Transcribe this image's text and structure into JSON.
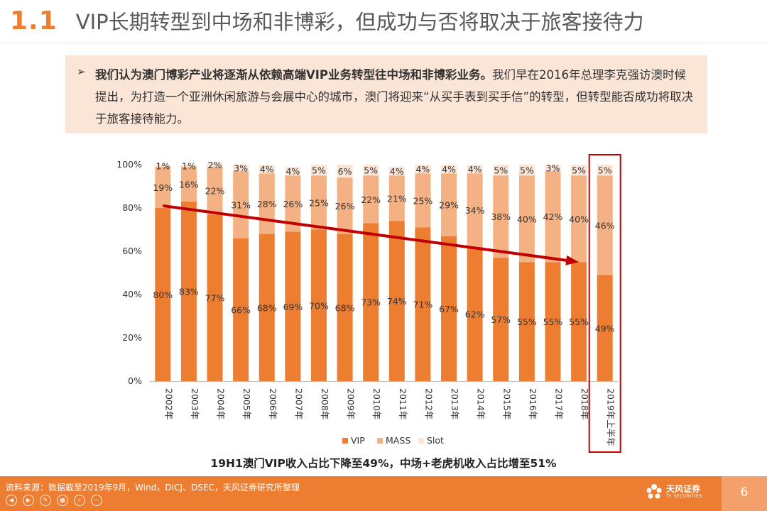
{
  "slide": {
    "number_label": "1.1",
    "title": "VIP长期转型到中场和非博彩，但成功与否将取决于旅客接待力",
    "callout_bullet": "➢",
    "callout_bold": "我们认为澳门博彩产业将逐渐从依赖高端VIP业务转型往中场和非博彩业务。",
    "callout_normal": "我们早在2016年总理李克强访澳时候提出，为打造一个亚洲休闲旅游与会展中心的城市，澳门将迎来“从买手表到买手信”的转型，但转型能否成功将取决于旅客接待能力。",
    "chart_subtitle": "19H1澳门VIP收入占比下降至49%，中场+老虎机收入占比增至51%",
    "source": "资料来源：数据截至2019年9月，Wind，DICJ、DSEC，天风证券研究所整理",
    "page_number": "6",
    "logo_cn": "天风证券",
    "logo_en": "TF SECURITIES"
  },
  "colors": {
    "accent": "#ED7D31",
    "vip": "#ED7D31",
    "mass": "#F4B183",
    "slot": "#FBE5D6",
    "trend_arrow": "#C00000",
    "highlight_box": "#C00000",
    "callout_bg": "#FBE5D6"
  },
  "chart_data": {
    "type": "bar",
    "stacked": true,
    "categories": [
      "2002年",
      "2003年",
      "2004年",
      "2005年",
      "2006年",
      "2007年",
      "2008年",
      "2009年",
      "2010年",
      "2011年",
      "2012年",
      "2013年",
      "2014年",
      "2015年",
      "2016年",
      "2017年",
      "2018年",
      "2019年上半年"
    ],
    "series": [
      {
        "name": "VIP",
        "values": [
          80,
          83,
          77,
          66,
          68,
          69,
          70,
          68,
          73,
          74,
          71,
          67,
          62,
          57,
          55,
          55,
          55,
          49
        ]
      },
      {
        "name": "MASS",
        "values": [
          19,
          16,
          22,
          31,
          28,
          26,
          25,
          26,
          22,
          21,
          25,
          29,
          34,
          38,
          40,
          42,
          40,
          46
        ]
      },
      {
        "name": "Slot",
        "values": [
          1,
          1,
          2,
          3,
          4,
          4,
          5,
          6,
          5,
          4,
          4,
          4,
          4,
          5,
          5,
          3,
          5,
          5
        ]
      }
    ],
    "ylim": [
      0,
      100
    ],
    "yticks": [
      "0%",
      "20%",
      "40%",
      "60%",
      "80%",
      "100%"
    ],
    "value_suffix": "%",
    "legend": "bottom",
    "grid": false,
    "annotations": {
      "trend_arrow": {
        "from_category": "2002年",
        "from_value": 81,
        "to_category": "2018年",
        "to_value": 55
      },
      "highlight_category": "2019年上半年"
    }
  }
}
